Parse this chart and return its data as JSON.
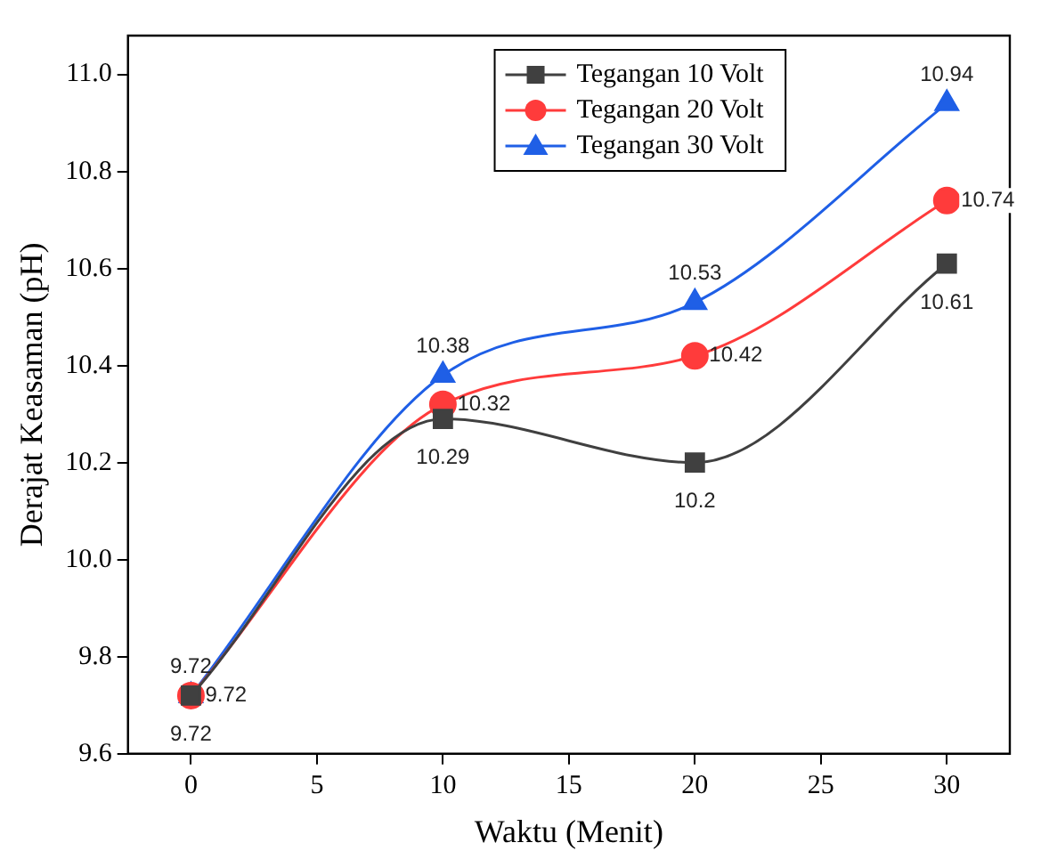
{
  "chart_data": {
    "type": "line",
    "xlabel": "Waktu (Menit)",
    "ylabel": "Derajat Keasaman (pH)",
    "x": [
      0,
      10,
      20,
      30
    ],
    "series": [
      {
        "name": "Tegangan 10 Volt",
        "color": "#404040",
        "marker": "square",
        "values": [
          9.72,
          10.29,
          10.2,
          10.61
        ]
      },
      {
        "name": "Tegangan 20 Volt",
        "color": "#ff3b3b",
        "marker": "circle",
        "values": [
          9.72,
          10.32,
          10.42,
          10.74
        ]
      },
      {
        "name": "Tegangan 30 Volt",
        "color": "#1f5fe6",
        "marker": "triangle",
        "values": [
          9.72,
          10.38,
          10.53,
          10.94
        ]
      }
    ],
    "xlim": [
      -2.5,
      32.5
    ],
    "xticks": [
      0,
      5,
      10,
      15,
      20,
      25,
      30
    ],
    "ylim": [
      9.6,
      11.08
    ],
    "yticks": [
      9.6,
      9.8,
      {
        "value": 10,
        "label": "10.0"
      },
      10.2,
      10.4,
      10.6,
      10.8,
      {
        "value": 11,
        "label": "11.0"
      }
    ],
    "grid": false,
    "legend": "top",
    "data_labels": true
  }
}
